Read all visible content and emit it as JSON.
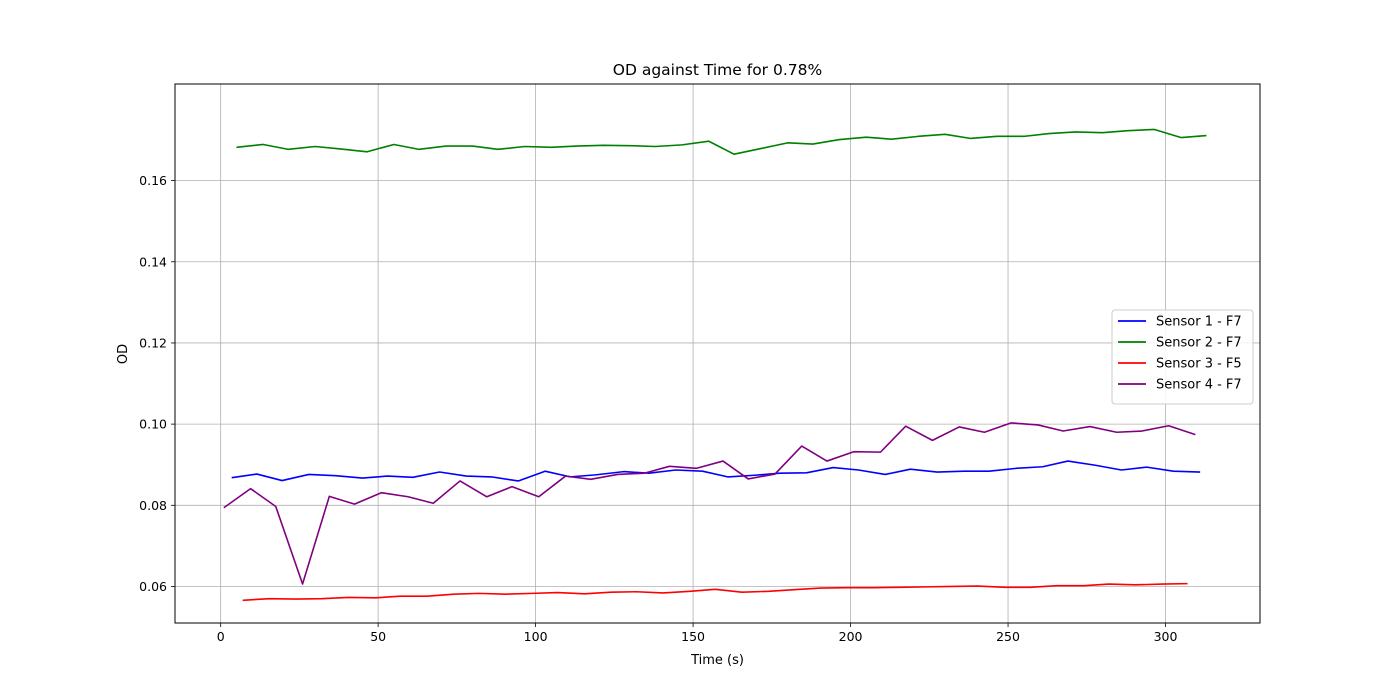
{
  "chart_data": {
    "type": "line",
    "title": "OD against Time for 0.78%",
    "xlabel": "Time (s)",
    "ylabel": "OD",
    "xlim": [
      -14.5,
      330
    ],
    "ylim": [
      0.051,
      0.1838
    ],
    "xticks": [
      0,
      50,
      100,
      150,
      200,
      250,
      300
    ],
    "yticks": [
      0.06,
      0.08,
      0.1,
      0.12,
      0.14,
      0.16
    ],
    "ytick_labels": [
      "0.06",
      "0.08",
      "0.10",
      "0.12",
      "0.14",
      "0.16"
    ],
    "grid": true,
    "legend_position": "center-right",
    "series": [
      {
        "name": "Sensor 1 - F7",
        "color": "#0000ff",
        "x": [
          3.5,
          11.5,
          19.5,
          28,
          36.5,
          45,
          53,
          61,
          69.5,
          78,
          86,
          94.5,
          103,
          111,
          119,
          128,
          136,
          144.5,
          153,
          161,
          169.5,
          177.5,
          186,
          194.5,
          202.5,
          211,
          219,
          227.5,
          236,
          244,
          252.5,
          261,
          269,
          277.5,
          286,
          294,
          302.5,
          311
        ],
        "y": [
          0.0868,
          0.0877,
          0.0861,
          0.0876,
          0.0873,
          0.0867,
          0.0872,
          0.0869,
          0.0882,
          0.0872,
          0.087,
          0.086,
          0.0884,
          0.087,
          0.0875,
          0.0883,
          0.0879,
          0.0887,
          0.0884,
          0.087,
          0.0874,
          0.0879,
          0.088,
          0.0893,
          0.0887,
          0.0876,
          0.0889,
          0.0882,
          0.0884,
          0.0884,
          0.0891,
          0.0895,
          0.0909,
          0.0899,
          0.0887,
          0.0894,
          0.0884,
          0.0882
        ]
      },
      {
        "name": "Sensor 2 - F7",
        "color": "#008000",
        "x": [
          5,
          13.5,
          21.5,
          30,
          38,
          46.5,
          55,
          63,
          71.5,
          80,
          88,
          96.5,
          105,
          113,
          121.5,
          130,
          138,
          146.5,
          155,
          163,
          171.5,
          180,
          188,
          196.5,
          205,
          213,
          221.5,
          230,
          238,
          246.5,
          255,
          263,
          271.5,
          280,
          288,
          296.5,
          305,
          313
        ],
        "y": [
          0.1682,
          0.1689,
          0.1677,
          0.1684,
          0.1678,
          0.1671,
          0.1689,
          0.1677,
          0.1685,
          0.1685,
          0.1677,
          0.1684,
          0.1682,
          0.1685,
          0.1687,
          0.1686,
          0.1684,
          0.1688,
          0.1697,
          0.1665,
          0.1679,
          0.1693,
          0.169,
          0.1701,
          0.1707,
          0.1702,
          0.1709,
          0.1714,
          0.1704,
          0.1709,
          0.1709,
          0.1716,
          0.172,
          0.1718,
          0.1723,
          0.1726,
          0.1706,
          0.1711
        ]
      },
      {
        "name": "Sensor 3 - F5",
        "color": "#ff0000",
        "x": [
          7,
          15.5,
          24,
          32,
          40.5,
          49,
          57,
          65.5,
          74,
          82,
          90.5,
          99,
          107,
          115.5,
          124,
          132,
          140.5,
          149,
          157,
          165.5,
          174,
          182,
          190.5,
          199,
          207,
          215.5,
          224,
          232,
          240.5,
          249,
          257,
          265.5,
          274,
          282,
          290.5,
          299,
          307
        ],
        "y": [
          0.0566,
          0.057,
          0.0569,
          0.057,
          0.0573,
          0.0572,
          0.0576,
          0.0576,
          0.0581,
          0.0583,
          0.0581,
          0.0583,
          0.0585,
          0.0582,
          0.0586,
          0.0587,
          0.0584,
          0.0588,
          0.0593,
          0.0586,
          0.0588,
          0.0592,
          0.0596,
          0.0597,
          0.0597,
          0.0598,
          0.0599,
          0.06,
          0.0601,
          0.0598,
          0.0598,
          0.0602,
          0.0602,
          0.0606,
          0.0604,
          0.0606,
          0.0607
        ]
      },
      {
        "name": "Sensor 4 - F7",
        "color": "#800080",
        "x": [
          1,
          9.5,
          17.5,
          26,
          34.5,
          42.5,
          51,
          59.5,
          67.5,
          76,
          84.5,
          92.5,
          101,
          109.5,
          117.5,
          126,
          134.5,
          142.5,
          151,
          159.5,
          167.5,
          176,
          184.5,
          192.5,
          201,
          209.5,
          217.5,
          226,
          234.5,
          242.5,
          251,
          259.5,
          267.5,
          276,
          284.5,
          292.5,
          301,
          309.5
        ],
        "y": [
          0.0794,
          0.0841,
          0.0797,
          0.0606,
          0.0822,
          0.0803,
          0.0831,
          0.0821,
          0.0805,
          0.086,
          0.0821,
          0.0846,
          0.0821,
          0.0872,
          0.0864,
          0.0876,
          0.0879,
          0.0896,
          0.0891,
          0.0909,
          0.0865,
          0.0877,
          0.0946,
          0.0909,
          0.0932,
          0.0931,
          0.0995,
          0.096,
          0.0993,
          0.098,
          0.1003,
          0.0998,
          0.0983,
          0.0994,
          0.098,
          0.0983,
          0.0996,
          0.0974
        ]
      }
    ]
  }
}
